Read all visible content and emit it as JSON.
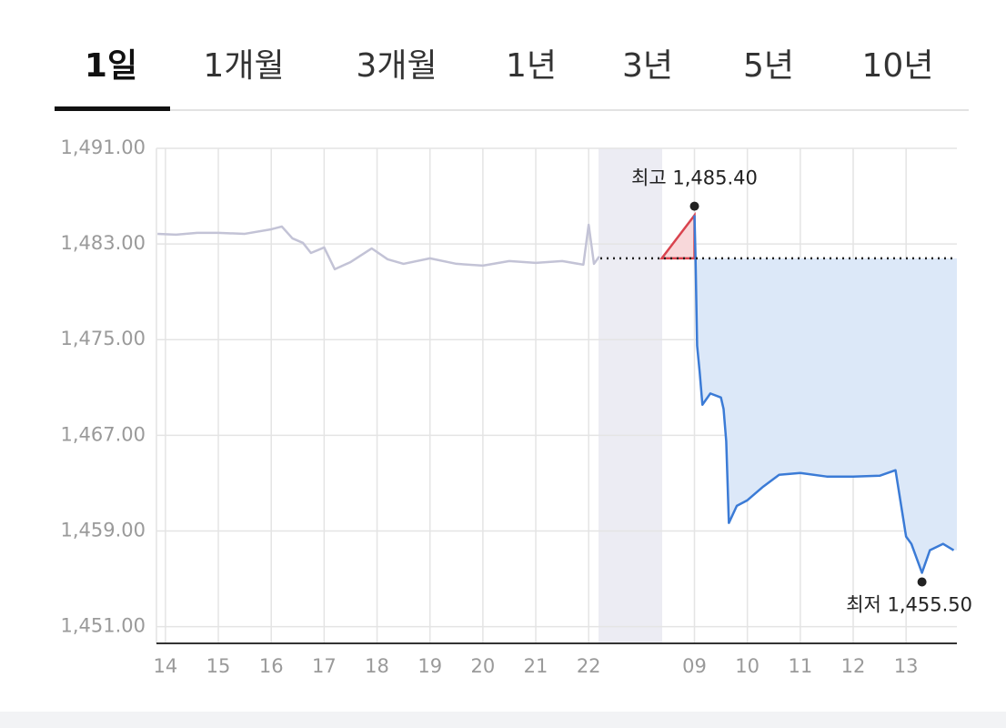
{
  "tabs": [
    "1일",
    "1개월",
    "3개월",
    "1년",
    "3년",
    "5년",
    "10년"
  ],
  "selected_tab": 0,
  "chart_data": {
    "type": "line",
    "xlim": [
      13.83,
      28.96
    ],
    "xticks": [
      14,
      15,
      16,
      17,
      18,
      19,
      20,
      21,
      22,
      {
        "value": 24,
        "label": "09"
      },
      {
        "value": 25,
        "label": "10"
      },
      {
        "value": 26,
        "label": "11"
      },
      {
        "value": 27,
        "label": "12"
      },
      {
        "value": 28,
        "label": "13"
      }
    ],
    "ylim": [
      1449.6,
      1491
    ],
    "yticks": [
      {
        "value": 1491,
        "label": "1,491.00"
      },
      {
        "value": 1483,
        "label": "1,483.00"
      },
      {
        "value": 1475,
        "label": "1,475.00"
      },
      {
        "value": 1467,
        "label": "1,467.00"
      },
      {
        "value": 1459,
        "label": "1,459.00"
      },
      {
        "value": 1451,
        "label": "1,451.00"
      }
    ],
    "grid": true,
    "reference": 1481.8,
    "series": [
      {
        "color": "#c3c3d6",
        "x": [
          13.85,
          14.2,
          14.6,
          15.0,
          15.5,
          16.0,
          16.2,
          16.4,
          16.6,
          16.75,
          17.0,
          17.2,
          17.5,
          17.9,
          18.2,
          18.5,
          19.0,
          19.5,
          20.0,
          20.5,
          21.0,
          21.5,
          21.9,
          22.0,
          22.1,
          22.2
        ],
        "values": [
          1483.85,
          1483.78,
          1483.93,
          1483.93,
          1483.85,
          1484.23,
          1484.46,
          1483.47,
          1483.09,
          1482.25,
          1482.71,
          1480.89,
          1481.49,
          1482.63,
          1481.72,
          1481.34,
          1481.8,
          1481.34,
          1481.19,
          1481.57,
          1481.42,
          1481.57,
          1481.27,
          1484.61,
          1481.34,
          1481.95
        ]
      },
      {
        "color": "#3b7bd6",
        "fill": "#dce8f8",
        "x": [
          24.0,
          24.02,
          24.05,
          24.1,
          24.15,
          24.3,
          24.5,
          24.55,
          24.6,
          24.65,
          24.8,
          25.0,
          25.3,
          25.6,
          26.0,
          26.5,
          27.0,
          27.5,
          27.8,
          28.0,
          28.1,
          28.3,
          28.45,
          28.7,
          28.9
        ],
        "values": [
          1485.4,
          1481.8,
          1474.5,
          1472.2,
          1469.56,
          1470.5,
          1470.16,
          1469.2,
          1466.5,
          1459.67,
          1461.1,
          1461.57,
          1462.71,
          1463.7,
          1463.85,
          1463.55,
          1463.55,
          1463.62,
          1464.08,
          1458.53,
          1457.92,
          1455.5,
          1457.39,
          1457.92,
          1457.39
        ]
      }
    ],
    "annotations": [
      {
        "text": "최고 1,485.40",
        "x": 24.0,
        "y": 1485.4
      },
      {
        "text": "최저 1,455.50",
        "x": 28.3,
        "y": 1455.5
      }
    ]
  }
}
